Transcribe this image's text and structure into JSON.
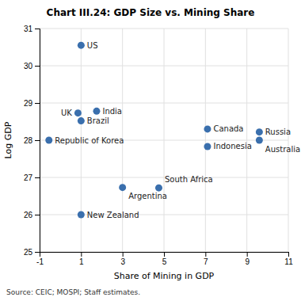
{
  "chart_data": {
    "type": "scatter",
    "title": "Chart III.24: GDP Size vs. Mining Share",
    "x_label": "Share of Mining in GDP",
    "y_label": "Log GDP",
    "source": "Source: CEIC; MOSPI; Staff estimates.",
    "labels": [
      "US",
      "UK",
      "India",
      "Brazil",
      "Republic of Korea",
      "Canada",
      "Russia",
      "Indonesia",
      "Australia",
      "Argentina",
      "South Africa",
      "New Zealand"
    ],
    "x": [
      1.0,
      0.85,
      1.75,
      1.0,
      -0.55,
      7.1,
      9.6,
      7.1,
      9.6,
      3.0,
      4.75,
      1.0
    ],
    "values": [
      30.55,
      28.73,
      28.78,
      28.52,
      28.0,
      28.3,
      28.22,
      27.83,
      28.0,
      26.73,
      26.72,
      26.0
    ],
    "color": "#3a6fad",
    "xlim": [
      -1,
      11
    ],
    "ylim": [
      25,
      31
    ],
    "xticks": [
      -1,
      1,
      3,
      5,
      7,
      9,
      11
    ],
    "yticks": [
      25,
      26,
      27,
      28,
      29,
      30,
      31
    ],
    "grid": true
  }
}
